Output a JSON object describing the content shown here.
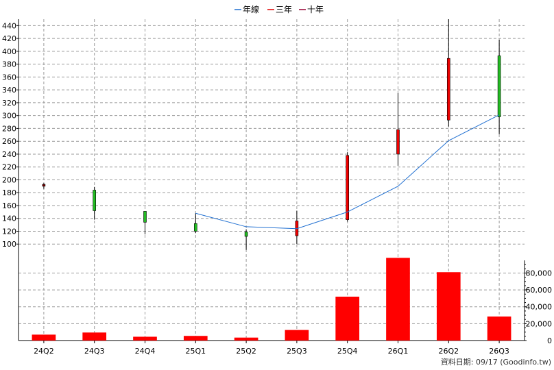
{
  "chart_data": {
    "type": "candlestick",
    "legend": {
      "placement": "top-center",
      "items": [
        {
          "label": "年線",
          "color": "#1f6fd1"
        },
        {
          "label": "三年",
          "color": "#e00000"
        },
        {
          "label": "十年",
          "color": "#990033"
        }
      ]
    },
    "categories": [
      "24Q2",
      "24Q3",
      "24Q4",
      "25Q1",
      "25Q2",
      "25Q3",
      "25Q4",
      "26Q1",
      "26Q2",
      "26Q3"
    ],
    "price_axis": {
      "ylim": [
        80,
        450
      ],
      "ticks": [
        100,
        120,
        140,
        160,
        180,
        200,
        220,
        240,
        260,
        280,
        300,
        320,
        340,
        360,
        380,
        400,
        420,
        440
      ]
    },
    "candles": [
      {
        "open": 193,
        "high": 195,
        "low": 186,
        "close": 190,
        "color": "#800000"
      },
      {
        "open": 152,
        "high": 189,
        "low": 138,
        "close": 184,
        "color": "#22bb22"
      },
      {
        "open": 134,
        "high": 151,
        "low": 115,
        "close": 151,
        "color": "#22bb22"
      },
      {
        "open": 120,
        "high": 148,
        "low": 117,
        "close": 132,
        "color": "#22bb22"
      },
      {
        "open": 112,
        "high": 123,
        "low": 91,
        "close": 119,
        "color": "#22bb22"
      },
      {
        "open": 136,
        "high": 152,
        "low": 100,
        "close": 113,
        "color": "#ee0000"
      },
      {
        "open": 238,
        "high": 243,
        "low": 135,
        "close": 138,
        "color": "#ee0000"
      },
      {
        "open": 278,
        "high": 335,
        "low": 222,
        "close": 240,
        "color": "#ee0000"
      },
      {
        "open": 389,
        "high": 450,
        "low": 283,
        "close": 293,
        "color": "#ee0000"
      },
      {
        "open": 298,
        "high": 418,
        "low": 271,
        "close": 393,
        "color": "#22bb22"
      }
    ],
    "series": [
      {
        "name": "年線",
        "color": "#1f6fd1",
        "values": [
          null,
          null,
          null,
          148,
          127,
          124,
          150,
          190,
          261,
          301
        ]
      }
    ],
    "volume_axis": {
      "ylim": [
        0,
        95000
      ],
      "ticks": [
        0,
        20000,
        40000,
        60000,
        80000
      ],
      "tick_labels": [
        "0",
        "20,000",
        "40,000",
        "60,000",
        "80,000"
      ]
    },
    "volume": {
      "color": "#ff0000",
      "values": [
        7000,
        9500,
        4500,
        5500,
        3500,
        12500,
        52000,
        98000,
        81000,
        28500
      ]
    },
    "grid": true
  },
  "footer": {
    "source_text": "資料日期: 09/17  (Goodinfo.tw)"
  }
}
